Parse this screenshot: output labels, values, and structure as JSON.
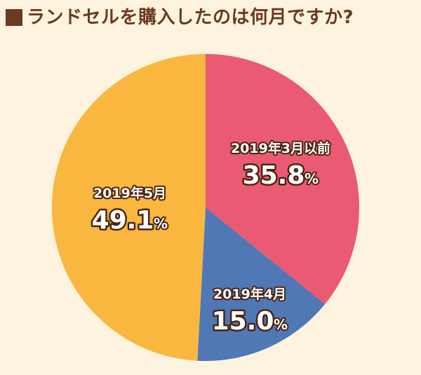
{
  "title": "ランドセルを購入したのは何月ですか?",
  "colors": {
    "background": "#fdf3df",
    "title": "#6b3a20",
    "label_outline": "#4a2412"
  },
  "chart_data": {
    "type": "pie",
    "title": "ランドセルを購入したのは何月ですか?",
    "unit": "%",
    "slices": [
      {
        "label": "2019年3月以前",
        "value": 35.8,
        "display": "35.8",
        "color": "#ea5a72"
      },
      {
        "label": "2019年4月",
        "value": 15.0,
        "display": "15.0",
        "color": "#4f78b4"
      },
      {
        "label": "2019年5月",
        "value": 49.1,
        "display": "49.1",
        "color": "#f9b73f"
      }
    ]
  }
}
